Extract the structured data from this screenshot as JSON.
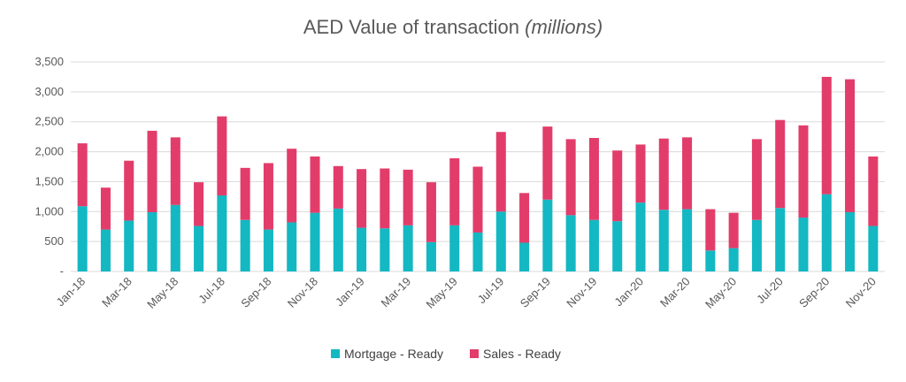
{
  "chart_data": {
    "type": "bar",
    "stacked": true,
    "title": "AED Value of transaction",
    "title_suffix": "(millions)",
    "ylim": [
      0,
      3500
    ],
    "yticks": [
      "-",
      "500",
      "1,000",
      "1,500",
      "2,000",
      "2,500",
      "3,000",
      "3,500"
    ],
    "ytick_values": [
      0,
      500,
      1000,
      1500,
      2000,
      2500,
      3000,
      3500
    ],
    "grid": true,
    "legend_position": "bottom",
    "categories": [
      "Jan-18",
      "Feb-18",
      "Mar-18",
      "Apr-18",
      "May-18",
      "Jun-18",
      "Jul-18",
      "Aug-18",
      "Sep-18",
      "Oct-18",
      "Nov-18",
      "Dec-18",
      "Jan-19",
      "Feb-19",
      "Mar-19",
      "Apr-19",
      "May-19",
      "Jun-19",
      "Jul-19",
      "Aug-19",
      "Sep-19",
      "Oct-19",
      "Nov-19",
      "Dec-19",
      "Jan-20",
      "Feb-20",
      "Mar-20",
      "Apr-20",
      "May-20",
      "Jun-20",
      "Jul-20",
      "Aug-20",
      "Sep-20",
      "Oct-20",
      "Nov-20"
    ],
    "xtick_labels": [
      "Jan-18",
      "Mar-18",
      "May-18",
      "Jul-18",
      "Sep-18",
      "Nov-18",
      "Jan-19",
      "Mar-19",
      "May-19",
      "Jul-19",
      "Sep-19",
      "Nov-19",
      "Jan-20",
      "Mar-20",
      "May-20",
      "Jul-20",
      "Sep-20",
      "Nov-20"
    ],
    "series": [
      {
        "name": "Mortgage - Ready",
        "color": "#13b8c3",
        "values": [
          1090,
          700,
          850,
          990,
          1110,
          760,
          1270,
          860,
          700,
          820,
          980,
          1050,
          730,
          720,
          770,
          490,
          770,
          650,
          1000,
          480,
          1200,
          940,
          860,
          840,
          1150,
          1030,
          1040,
          350,
          390,
          860,
          1060,
          900,
          1290,
          990,
          760
        ]
      },
      {
        "name": "Sales - Ready",
        "color": "#e23d6a",
        "values": [
          1050,
          700,
          1000,
          1360,
          1130,
          730,
          1320,
          870,
          1110,
          1230,
          940,
          710,
          980,
          1000,
          930,
          1000,
          1120,
          1100,
          1330,
          830,
          1220,
          1270,
          1370,
          1180,
          970,
          1190,
          1200,
          690,
          590,
          1350,
          1470,
          1540,
          1960,
          2220,
          1160
        ]
      }
    ]
  }
}
